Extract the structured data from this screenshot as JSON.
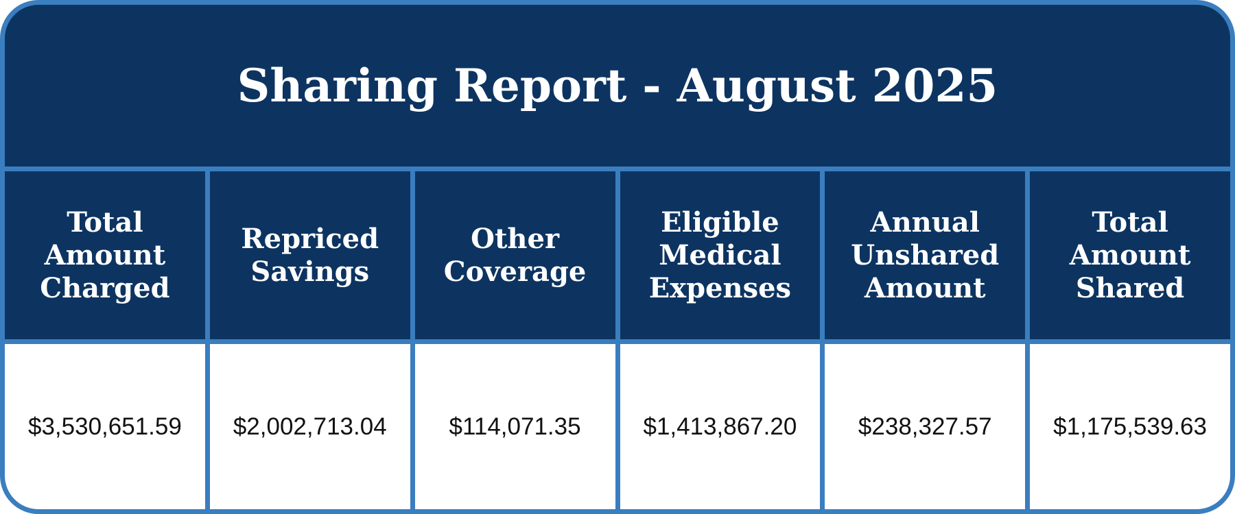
{
  "title": "Sharing Report - August 2025",
  "table": {
    "headers": [
      "Total Amount Charged",
      "Repriced Savings",
      "Other Coverage",
      "Eligible Medical Expenses",
      "Annual Unshared Amount",
      "Total Amount Shared"
    ],
    "rows": [
      [
        "$3,530,651.59",
        "$2,002,713.04",
        "$114,071.35",
        "$1,413,867.20",
        "$238,327.57",
        "$1,175,539.63"
      ]
    ]
  }
}
